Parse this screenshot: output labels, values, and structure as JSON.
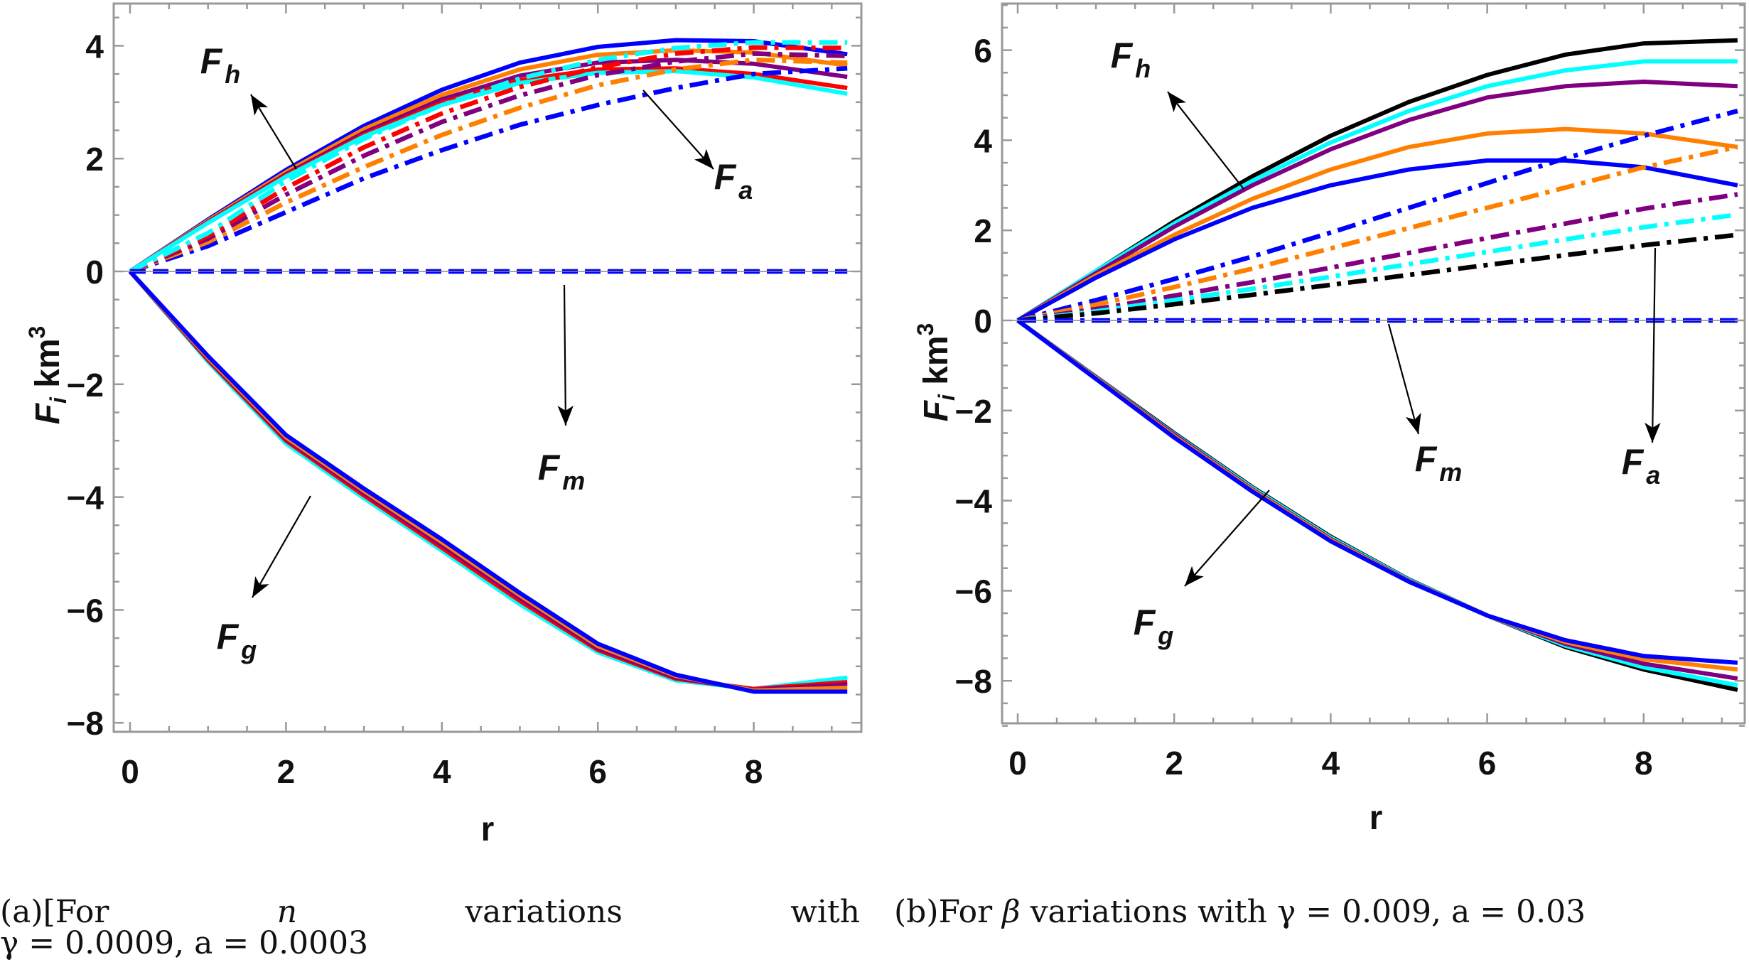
{
  "colors": {
    "blue": "#0000ff",
    "orange": "#ff8000",
    "purple": "#800080",
    "red": "#ff0000",
    "cyan": "#00ffff",
    "black": "#000000",
    "frame": "#999999"
  },
  "captions": {
    "a": {
      "prefix": "(a)[For",
      "var": "n",
      "word1": "variations",
      "word2": "with",
      "gamma": "γ = 0.0009,",
      "a": "a = 0.0003"
    },
    "b": {
      "prefix": "(b)For",
      "var": "β",
      "rest": "variations with",
      "gamma": "γ = 0.009,",
      "a1": "a =",
      "a2": "0.03"
    }
  },
  "chart_data": [
    {
      "type": "line",
      "xlabel": "r",
      "ylabel": {
        "main": "F",
        "sub": "i",
        "unit": "km",
        "sup": "3"
      },
      "xlim": [
        -0.2,
        9.3
      ],
      "ylim": [
        -8.2,
        4.8
      ],
      "xticks": [
        0,
        2,
        4,
        6,
        8
      ],
      "yticks": [
        -8,
        -6,
        -4,
        -2,
        0,
        2,
        4
      ],
      "grid": false,
      "annotations": [
        {
          "main": "F",
          "sub": "h"
        },
        {
          "main": "F",
          "sub": "a"
        },
        {
          "main": "F",
          "sub": "m"
        },
        {
          "main": "F",
          "sub": "g"
        }
      ],
      "x": [
        0,
        1,
        2,
        3,
        4,
        5,
        6,
        7,
        8,
        9.2
      ],
      "series": [
        {
          "group": "Fh",
          "style": "solid",
          "color": "blue",
          "values": [
            0,
            0.92,
            1.8,
            2.58,
            3.22,
            3.7,
            3.98,
            4.1,
            4.08,
            3.85
          ]
        },
        {
          "group": "Fh",
          "style": "solid",
          "color": "orange",
          "values": [
            0,
            0.9,
            1.76,
            2.52,
            3.13,
            3.58,
            3.84,
            3.92,
            3.88,
            3.65
          ]
        },
        {
          "group": "Fh",
          "style": "solid",
          "color": "purple",
          "values": [
            0,
            0.88,
            1.72,
            2.46,
            3.05,
            3.47,
            3.7,
            3.75,
            3.68,
            3.45
          ]
        },
        {
          "group": "Fh",
          "style": "solid",
          "color": "red",
          "values": [
            0,
            0.87,
            1.7,
            2.42,
            2.99,
            3.39,
            3.58,
            3.6,
            3.5,
            3.25
          ]
        },
        {
          "group": "Fh",
          "style": "solid",
          "color": "cyan",
          "values": [
            0,
            0.86,
            1.68,
            2.39,
            2.95,
            3.34,
            3.52,
            3.55,
            3.44,
            3.15
          ]
        },
        {
          "group": "Fa",
          "style": "dashdot",
          "color": "blue",
          "values": [
            0,
            0.45,
            1.05,
            1.65,
            2.15,
            2.6,
            2.95,
            3.25,
            3.5,
            3.6
          ]
        },
        {
          "group": "Fa",
          "style": "dashdot",
          "color": "orange",
          "values": [
            0,
            0.52,
            1.22,
            1.85,
            2.42,
            2.9,
            3.3,
            3.58,
            3.75,
            3.7
          ]
        },
        {
          "group": "Fa",
          "style": "dashdot",
          "color": "purple",
          "values": [
            0,
            0.58,
            1.36,
            2.05,
            2.65,
            3.12,
            3.48,
            3.72,
            3.86,
            3.82
          ]
        },
        {
          "group": "Fa",
          "style": "dashdot",
          "color": "red",
          "values": [
            0,
            0.63,
            1.48,
            2.2,
            2.8,
            3.27,
            3.62,
            3.86,
            3.97,
            3.96
          ]
        },
        {
          "group": "Fa",
          "style": "dashdot",
          "color": "cyan",
          "values": [
            0,
            0.68,
            1.6,
            2.35,
            2.95,
            3.42,
            3.75,
            3.96,
            4.06,
            4.06
          ]
        },
        {
          "group": "Fm",
          "style": "dashed",
          "color": "blue",
          "values": [
            0,
            0,
            0,
            0,
            0,
            0,
            0,
            0,
            0,
            0
          ]
        },
        {
          "group": "Fg",
          "style": "solid",
          "color": "cyan",
          "values": [
            0,
            -1.6,
            -3.05,
            -4.02,
            -4.95,
            -5.9,
            -6.75,
            -7.25,
            -7.4,
            -7.2
          ]
        },
        {
          "group": "Fg",
          "style": "solid",
          "color": "red",
          "values": [
            0,
            -1.57,
            -3.0,
            -3.97,
            -4.9,
            -5.84,
            -6.71,
            -7.22,
            -7.4,
            -7.28
          ]
        },
        {
          "group": "Fg",
          "style": "solid",
          "color": "purple",
          "values": [
            0,
            -1.55,
            -2.97,
            -3.93,
            -4.85,
            -5.79,
            -6.68,
            -7.2,
            -7.42,
            -7.32
          ]
        },
        {
          "group": "Fg",
          "style": "solid",
          "color": "orange",
          "values": [
            0,
            -1.53,
            -2.94,
            -3.89,
            -4.8,
            -5.74,
            -6.64,
            -7.17,
            -7.43,
            -7.38
          ]
        },
        {
          "group": "Fg",
          "style": "solid",
          "color": "blue",
          "values": [
            0,
            -1.5,
            -2.9,
            -3.85,
            -4.75,
            -5.7,
            -6.6,
            -7.15,
            -7.45,
            -7.45
          ]
        }
      ]
    },
    {
      "type": "line",
      "xlabel": "r",
      "ylabel": {
        "main": "F",
        "sub": "i",
        "unit": "km",
        "sup": "3"
      },
      "xlim": [
        -0.2,
        9.3
      ],
      "ylim": [
        -9,
        7
      ],
      "xticks": [
        0,
        2,
        4,
        6,
        8
      ],
      "yticks": [
        -8,
        -6,
        -4,
        -2,
        0,
        2,
        4,
        6
      ],
      "grid": false,
      "annotations": [
        {
          "main": "F",
          "sub": "h"
        },
        {
          "main": "F",
          "sub": "m"
        },
        {
          "main": "F",
          "sub": "a"
        },
        {
          "main": "F",
          "sub": "g"
        }
      ],
      "x": [
        0,
        1,
        2,
        3,
        4,
        5,
        6,
        7,
        8,
        9.2
      ],
      "series": [
        {
          "group": "Fh",
          "style": "solid",
          "color": "black",
          "values": [
            0,
            1.1,
            2.2,
            3.2,
            4.1,
            4.85,
            5.45,
            5.9,
            6.15,
            6.22
          ]
        },
        {
          "group": "Fh",
          "style": "solid",
          "color": "cyan",
          "values": [
            0,
            1.1,
            2.15,
            3.1,
            3.95,
            4.65,
            5.2,
            5.55,
            5.75,
            5.75
          ]
        },
        {
          "group": "Fh",
          "style": "solid",
          "color": "purple",
          "values": [
            0,
            1.05,
            2.08,
            3.0,
            3.8,
            4.45,
            4.95,
            5.2,
            5.3,
            5.2
          ]
        },
        {
          "group": "Fh",
          "style": "solid",
          "color": "orange",
          "values": [
            0,
            1.0,
            1.9,
            2.7,
            3.35,
            3.85,
            4.15,
            4.25,
            4.15,
            3.85
          ]
        },
        {
          "group": "Fh",
          "style": "solid",
          "color": "blue",
          "values": [
            0,
            0.95,
            1.8,
            2.5,
            3.0,
            3.35,
            3.55,
            3.55,
            3.4,
            3.0
          ]
        },
        {
          "group": "Fa",
          "style": "dashdot",
          "color": "blue",
          "values": [
            0,
            0.45,
            0.92,
            1.42,
            1.95,
            2.5,
            3.05,
            3.6,
            4.1,
            4.65
          ]
        },
        {
          "group": "Fa",
          "style": "dashdot",
          "color": "orange",
          "values": [
            0,
            0.35,
            0.74,
            1.15,
            1.6,
            2.05,
            2.5,
            2.95,
            3.4,
            3.85
          ]
        },
        {
          "group": "Fa",
          "style": "dashdot",
          "color": "purple",
          "values": [
            0,
            0.25,
            0.55,
            0.85,
            1.17,
            1.5,
            1.83,
            2.15,
            2.48,
            2.8
          ]
        },
        {
          "group": "Fa",
          "style": "dashdot",
          "color": "cyan",
          "values": [
            0,
            0.2,
            0.45,
            0.7,
            0.97,
            1.25,
            1.52,
            1.8,
            2.07,
            2.35
          ]
        },
        {
          "group": "Fa",
          "style": "dashdot",
          "color": "black",
          "values": [
            0,
            0.16,
            0.36,
            0.57,
            0.79,
            1.01,
            1.23,
            1.45,
            1.67,
            1.9
          ]
        },
        {
          "group": "Fm",
          "style": "dashdot",
          "color": "blue",
          "values": [
            0,
            0,
            0,
            0,
            0,
            0,
            0,
            0,
            0,
            0
          ]
        },
        {
          "group": "Fg",
          "style": "solid",
          "color": "black",
          "values": [
            0,
            -1.25,
            -2.5,
            -3.7,
            -4.8,
            -5.75,
            -6.55,
            -7.25,
            -7.75,
            -8.2
          ]
        },
        {
          "group": "Fg",
          "style": "solid",
          "color": "cyan",
          "values": [
            0,
            -1.26,
            -2.52,
            -3.72,
            -4.82,
            -5.76,
            -6.55,
            -7.22,
            -7.7,
            -8.1
          ]
        },
        {
          "group": "Fg",
          "style": "solid",
          "color": "purple",
          "values": [
            0,
            -1.27,
            -2.54,
            -3.75,
            -4.85,
            -5.78,
            -6.55,
            -7.18,
            -7.62,
            -7.95
          ]
        },
        {
          "group": "Fg",
          "style": "solid",
          "color": "orange",
          "values": [
            0,
            -1.28,
            -2.57,
            -3.77,
            -4.87,
            -5.79,
            -6.55,
            -7.14,
            -7.52,
            -7.75
          ]
        },
        {
          "group": "Fg",
          "style": "solid",
          "color": "blue",
          "values": [
            0,
            -1.3,
            -2.6,
            -3.8,
            -4.9,
            -5.8,
            -6.55,
            -7.1,
            -7.45,
            -7.6
          ]
        }
      ]
    }
  ]
}
